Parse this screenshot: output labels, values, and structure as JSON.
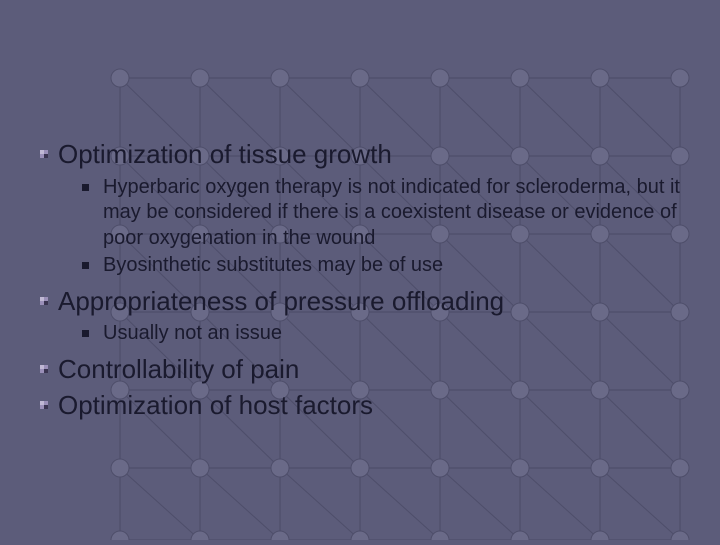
{
  "background": {
    "color": "#5c5c7a",
    "grid_line_color": "#4e4e6a",
    "node_fill": "#6a6a88",
    "node_edge": "#4e4e6a",
    "node_radius": 9,
    "rows": [
      78,
      156,
      234,
      312,
      390,
      468,
      540
    ],
    "cols": [
      120,
      200,
      280,
      360,
      440,
      520,
      600,
      680
    ]
  },
  "text_color": "#1a1a2e",
  "main_fontsize": 26,
  "sub_fontsize": 20,
  "items": [
    {
      "text": "Optimization of tissue growth",
      "sub": [
        "Hyperbaric oxygen therapy is not indicated for scleroderma, but it may be considered if there is a coexistent disease or evidence of poor oxygenation in the wound",
        "Byosinthetic substitutes may be of use"
      ]
    },
    {
      "text": "Appropriateness of pressure offloading",
      "sub": [
        "Usually not an issue"
      ]
    },
    {
      "text": "Controllability of pain",
      "sub": []
    },
    {
      "text": "Optimization of host factors",
      "sub": []
    }
  ]
}
